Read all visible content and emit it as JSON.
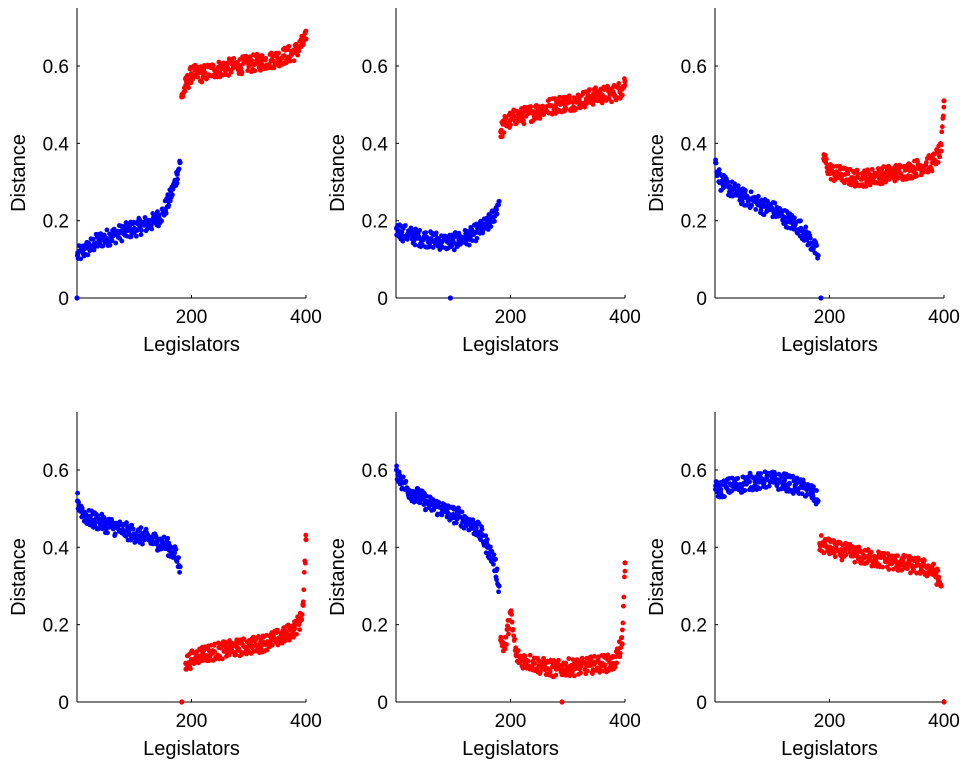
{
  "chart_data": [
    {
      "type": "scatter",
      "xlabel": "Legislators",
      "ylabel": "Distance",
      "xlim": [
        0,
        400
      ],
      "ylim": [
        0,
        0.75
      ],
      "xticks": [
        200,
        400
      ],
      "yticks": [
        0,
        0.2,
        0.4,
        0.6
      ],
      "grid": false,
      "series": [
        {
          "color": "#0000ff",
          "x": [
            0,
            1,
            10,
            20,
            30,
            40,
            50,
            60,
            70,
            80,
            90,
            100,
            110,
            120,
            130,
            140,
            150,
            160,
            170,
            175,
            180
          ],
          "y": [
            0,
            0.11,
            0.12,
            0.13,
            0.14,
            0.15,
            0.155,
            0.16,
            0.165,
            0.17,
            0.175,
            0.18,
            0.185,
            0.19,
            0.195,
            0.205,
            0.22,
            0.25,
            0.29,
            0.32,
            0.35
          ]
        },
        {
          "color": "#ff0000",
          "x": [
            183,
            190,
            200,
            210,
            220,
            240,
            260,
            280,
            300,
            320,
            340,
            360,
            380,
            395,
            400
          ],
          "y": [
            0.52,
            0.55,
            0.58,
            0.58,
            0.58,
            0.59,
            0.595,
            0.6,
            0.605,
            0.61,
            0.615,
            0.625,
            0.635,
            0.66,
            0.67
          ]
        }
      ]
    },
    {
      "type": "scatter",
      "xlabel": "Legislators",
      "ylabel": "Distance",
      "xlim": [
        0,
        400
      ],
      "ylim": [
        0,
        0.75
      ],
      "xticks": [
        200,
        400
      ],
      "yticks": [
        0,
        0.2,
        0.4,
        0.6
      ],
      "grid": false,
      "series": [
        {
          "color": "#0000ff",
          "x": [
            1,
            10,
            20,
            30,
            40,
            50,
            60,
            70,
            80,
            90,
            95,
            100,
            110,
            120,
            130,
            140,
            150,
            160,
            170,
            180
          ],
          "y": [
            0.18,
            0.17,
            0.165,
            0.16,
            0.155,
            0.155,
            0.15,
            0.15,
            0.145,
            0.145,
            0,
            0.145,
            0.15,
            0.155,
            0.16,
            0.17,
            0.18,
            0.19,
            0.21,
            0.25
          ]
        },
        {
          "color": "#ff0000",
          "x": [
            183,
            190,
            200,
            210,
            220,
            240,
            260,
            280,
            300,
            320,
            340,
            360,
            380,
            395,
            400
          ],
          "y": [
            0.43,
            0.45,
            0.46,
            0.47,
            0.47,
            0.48,
            0.49,
            0.5,
            0.505,
            0.51,
            0.52,
            0.525,
            0.53,
            0.54,
            0.56
          ]
        }
      ]
    },
    {
      "type": "scatter",
      "xlabel": "Legislators",
      "ylabel": "Distance",
      "xlim": [
        0,
        400
      ],
      "ylim": [
        0,
        0.75
      ],
      "xticks": [
        200,
        400
      ],
      "yticks": [
        0,
        0.2,
        0.4,
        0.6
      ],
      "grid": false,
      "series": [
        {
          "color": "#0000ff",
          "x": [
            1,
            10,
            20,
            30,
            40,
            50,
            60,
            70,
            80,
            90,
            100,
            110,
            120,
            130,
            140,
            150,
            160,
            170,
            180,
            185
          ],
          "y": [
            0.35,
            0.3,
            0.29,
            0.28,
            0.27,
            0.26,
            0.255,
            0.25,
            0.24,
            0.235,
            0.23,
            0.22,
            0.21,
            0.2,
            0.19,
            0.18,
            0.16,
            0.14,
            0.11,
            0
          ]
        },
        {
          "color": "#ff0000",
          "x": [
            190,
            200,
            210,
            220,
            240,
            260,
            280,
            300,
            320,
            340,
            360,
            380,
            395,
            400
          ],
          "y": [
            0.36,
            0.33,
            0.32,
            0.32,
            0.31,
            0.31,
            0.315,
            0.32,
            0.325,
            0.33,
            0.34,
            0.35,
            0.38,
            0.51
          ]
        }
      ]
    },
    {
      "type": "scatter",
      "xlabel": "Legislators",
      "ylabel": "Distance",
      "xlim": [
        0,
        400
      ],
      "ylim": [
        0,
        0.75
      ],
      "xticks": [
        200,
        400
      ],
      "yticks": [
        0,
        0.2,
        0.4,
        0.6
      ],
      "grid": false,
      "series": [
        {
          "color": "#0000ff",
          "x": [
            1,
            10,
            20,
            30,
            40,
            50,
            60,
            70,
            80,
            90,
            100,
            110,
            120,
            130,
            140,
            150,
            160,
            170,
            180
          ],
          "y": [
            0.52,
            0.49,
            0.475,
            0.47,
            0.465,
            0.46,
            0.455,
            0.45,
            0.445,
            0.44,
            0.435,
            0.43,
            0.425,
            0.42,
            0.415,
            0.41,
            0.4,
            0.385,
            0.35
          ]
        },
        {
          "color": "#ff0000",
          "x": [
            183,
            190,
            200,
            210,
            220,
            240,
            260,
            280,
            300,
            320,
            340,
            360,
            380,
            390,
            395,
            400
          ],
          "y": [
            0,
            0.1,
            0.11,
            0.12,
            0.125,
            0.13,
            0.135,
            0.14,
            0.145,
            0.15,
            0.16,
            0.17,
            0.19,
            0.21,
            0.25,
            0.42
          ]
        }
      ]
    },
    {
      "type": "scatter",
      "xlabel": "Legislators",
      "ylabel": "Distance",
      "xlim": [
        0,
        400
      ],
      "ylim": [
        0,
        0.75
      ],
      "xticks": [
        200,
        400
      ],
      "yticks": [
        0,
        0.2,
        0.4,
        0.6
      ],
      "grid": false,
      "series": [
        {
          "color": "#0000ff",
          "x": [
            1,
            10,
            20,
            30,
            40,
            50,
            60,
            70,
            80,
            90,
            100,
            110,
            120,
            130,
            140,
            150,
            160,
            170,
            175,
            180
          ],
          "y": [
            0.6,
            0.57,
            0.55,
            0.54,
            0.53,
            0.52,
            0.51,
            0.505,
            0.5,
            0.49,
            0.485,
            0.48,
            0.47,
            0.46,
            0.45,
            0.43,
            0.4,
            0.37,
            0.34,
            0.3
          ]
        },
        {
          "color": "#ff0000",
          "x": [
            183,
            190,
            200,
            210,
            220,
            240,
            260,
            280,
            290,
            300,
            320,
            340,
            360,
            380,
            395,
            400
          ],
          "y": [
            0.16,
            0.14,
            0.23,
            0.12,
            0.11,
            0.1,
            0.09,
            0.085,
            0,
            0.09,
            0.09,
            0.095,
            0.1,
            0.1,
            0.15,
            0.36
          ]
        }
      ]
    },
    {
      "type": "scatter",
      "xlabel": "Legislators",
      "ylabel": "Distance",
      "xlim": [
        0,
        400
      ],
      "ylim": [
        0,
        0.75
      ],
      "xticks": [
        200,
        400
      ],
      "yticks": [
        0,
        0.2,
        0.4,
        0.6
      ],
      "grid": false,
      "series": [
        {
          "color": "#0000ff",
          "x": [
            1,
            10,
            20,
            30,
            40,
            50,
            60,
            70,
            80,
            90,
            100,
            110,
            120,
            130,
            140,
            150,
            160,
            170,
            180
          ],
          "y": [
            0.55,
            0.55,
            0.555,
            0.56,
            0.56,
            0.565,
            0.57,
            0.57,
            0.57,
            0.575,
            0.575,
            0.57,
            0.57,
            0.565,
            0.56,
            0.555,
            0.55,
            0.54,
            0.52
          ]
        },
        {
          "color": "#ff0000",
          "x": [
            183,
            190,
            200,
            210,
            220,
            240,
            260,
            280,
            300,
            320,
            340,
            360,
            380,
            390,
            395,
            400
          ],
          "y": [
            0.41,
            0.405,
            0.4,
            0.395,
            0.39,
            0.385,
            0.375,
            0.37,
            0.365,
            0.36,
            0.355,
            0.35,
            0.34,
            0.32,
            0.3,
            0
          ]
        }
      ]
    }
  ]
}
